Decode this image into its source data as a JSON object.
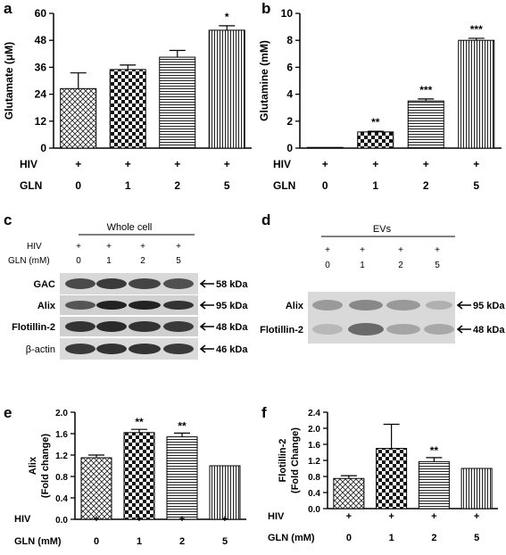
{
  "panels": {
    "a": "a",
    "b": "b",
    "c": "c",
    "d": "d",
    "e": "e",
    "f": "f"
  },
  "chart_data": [
    {
      "id": "a",
      "type": "bar",
      "ylabel": "Glutamate (μM)",
      "ylim": [
        0,
        60
      ],
      "yticks": [
        "0",
        "12",
        "24",
        "36",
        "48",
        "60"
      ],
      "row_labels": [
        "HIV",
        "GLN"
      ],
      "rows": [
        [
          "+",
          "+",
          "+",
          "+"
        ],
        [
          "0",
          "1",
          "2",
          "5"
        ]
      ],
      "values": [
        26.5,
        35,
        40.5,
        52.5
      ],
      "errors": [
        7,
        2,
        3,
        2
      ],
      "significance": [
        "",
        "",
        "",
        "*"
      ],
      "patterns": [
        "horiz-cross",
        "checker",
        "hstripe",
        "vstripe"
      ]
    },
    {
      "id": "b",
      "type": "bar",
      "ylabel": "Glutamine (mM)",
      "ylim": [
        0,
        10
      ],
      "yticks": [
        "0",
        "2",
        "4",
        "6",
        "8",
        "10"
      ],
      "row_labels": [
        "HIV",
        "GLN"
      ],
      "rows": [
        [
          "+",
          "+",
          "+",
          "+"
        ],
        [
          "0",
          "1",
          "2",
          "5"
        ]
      ],
      "values": [
        0.03,
        1.2,
        3.5,
        8.0
      ],
      "errors": [
        0,
        0.05,
        0.15,
        0.15
      ],
      "significance": [
        "",
        "**",
        "***",
        "***"
      ],
      "patterns": [
        "horiz-cross",
        "checker",
        "hstripe",
        "vstripe"
      ]
    },
    {
      "id": "e",
      "type": "bar",
      "ylabel": [
        "Alix",
        "(Fold change)"
      ],
      "ylim": [
        0,
        2.0
      ],
      "yticks": [
        "0.0",
        "0.4",
        "0.8",
        "1.2",
        "1.6",
        "2.0"
      ],
      "row_labels": [
        "HIV",
        "GLN (mM)"
      ],
      "rows": [
        [
          "+",
          "+",
          "+",
          "+"
        ],
        [
          "0",
          "1",
          "2",
          "5"
        ]
      ],
      "values": [
        1.15,
        1.62,
        1.54,
        1.0
      ],
      "errors": [
        0.05,
        0.06,
        0.07,
        0
      ],
      "significance": [
        "",
        "**",
        "**",
        ""
      ],
      "patterns": [
        "horiz-cross",
        "checker",
        "hstripe",
        "vstripe"
      ]
    },
    {
      "id": "f",
      "type": "bar",
      "ylabel": [
        "Flotillin-2",
        "(Fold Change)"
      ],
      "ylim": [
        0,
        2.4
      ],
      "yticks": [
        "0.0",
        "0.4",
        "0.8",
        "1.2",
        "1.6",
        "2.0",
        "2.4"
      ],
      "row_labels": [
        "HIV",
        "GLN (mM)"
      ],
      "rows": [
        [
          "+",
          "+",
          "+",
          "+"
        ],
        [
          "0",
          "1",
          "2",
          "5"
        ]
      ],
      "values": [
        0.75,
        1.5,
        1.17,
        1.0
      ],
      "errors": [
        0.07,
        0.6,
        0.1,
        0
      ],
      "significance": [
        "",
        "",
        "**",
        ""
      ],
      "patterns": [
        "horiz-cross",
        "checker",
        "hstripe",
        "vstripe"
      ]
    }
  ],
  "blot_c": {
    "title": "Whole cell",
    "hiv_label": "HIV",
    "gln_label": "GLN (mM)",
    "hiv": [
      "+",
      "+",
      "+",
      "+"
    ],
    "gln": [
      "0",
      "1",
      "2",
      "5"
    ],
    "bands": [
      {
        "name": "GAC",
        "kda": "58 kDa"
      },
      {
        "name": "Alix",
        "kda": "95 kDa"
      },
      {
        "name": "Flotillin-2",
        "kda": "48 kDa"
      },
      {
        "name": "β-actin",
        "kda": "46 kDa"
      }
    ]
  },
  "blot_d": {
    "title": "EVs",
    "hiv": [
      "+",
      "+",
      "+",
      "+"
    ],
    "gln": [
      "0",
      "1",
      "2",
      "5"
    ],
    "bands": [
      {
        "name": "Alix",
        "kda": "95 kDa"
      },
      {
        "name": "Flotillin-2",
        "kda": "48 kDa"
      }
    ]
  }
}
